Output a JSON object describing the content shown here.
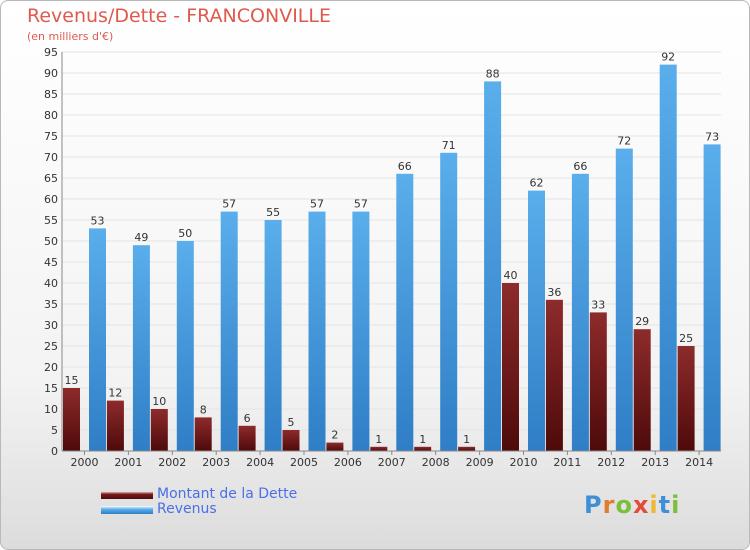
{
  "title": "Revenus/Dette - FRANCONVILLE",
  "subtitle": "(en milliers d'€)",
  "legend": {
    "dette": "Montant de la Dette",
    "revenus": "Revenus"
  },
  "logo": {
    "text": "Proxiti",
    "letters": [
      "P",
      "r",
      "o",
      "x",
      "i",
      "t",
      "i"
    ]
  },
  "colors": {
    "dette": "#6b1414",
    "revenus": "#4aa3e6",
    "title": "#df5a4d",
    "legend_text": "#4a6fe8"
  },
  "chart_data": {
    "type": "bar",
    "categories": [
      "2000",
      "2001",
      "2002",
      "2003",
      "2004",
      "2005",
      "2006",
      "2007",
      "2008",
      "2009",
      "2010",
      "2011",
      "2012",
      "2013",
      "2014"
    ],
    "series": [
      {
        "name": "Montant de la Dette",
        "values": [
          15,
          12,
          10,
          8,
          6,
          5,
          2,
          1,
          1,
          1,
          40,
          36,
          33,
          29,
          25
        ]
      },
      {
        "name": "Revenus",
        "values": [
          53,
          49,
          50,
          57,
          55,
          57,
          57,
          66,
          71,
          88,
          62,
          66,
          72,
          92,
          73
        ]
      }
    ],
    "ylim": [
      0,
      95
    ],
    "yticks": [
      0,
      5,
      10,
      15,
      20,
      25,
      30,
      35,
      40,
      45,
      50,
      55,
      60,
      65,
      70,
      75,
      80,
      85,
      90,
      95
    ],
    "grid": true,
    "legend_position": "bottom-left"
  }
}
